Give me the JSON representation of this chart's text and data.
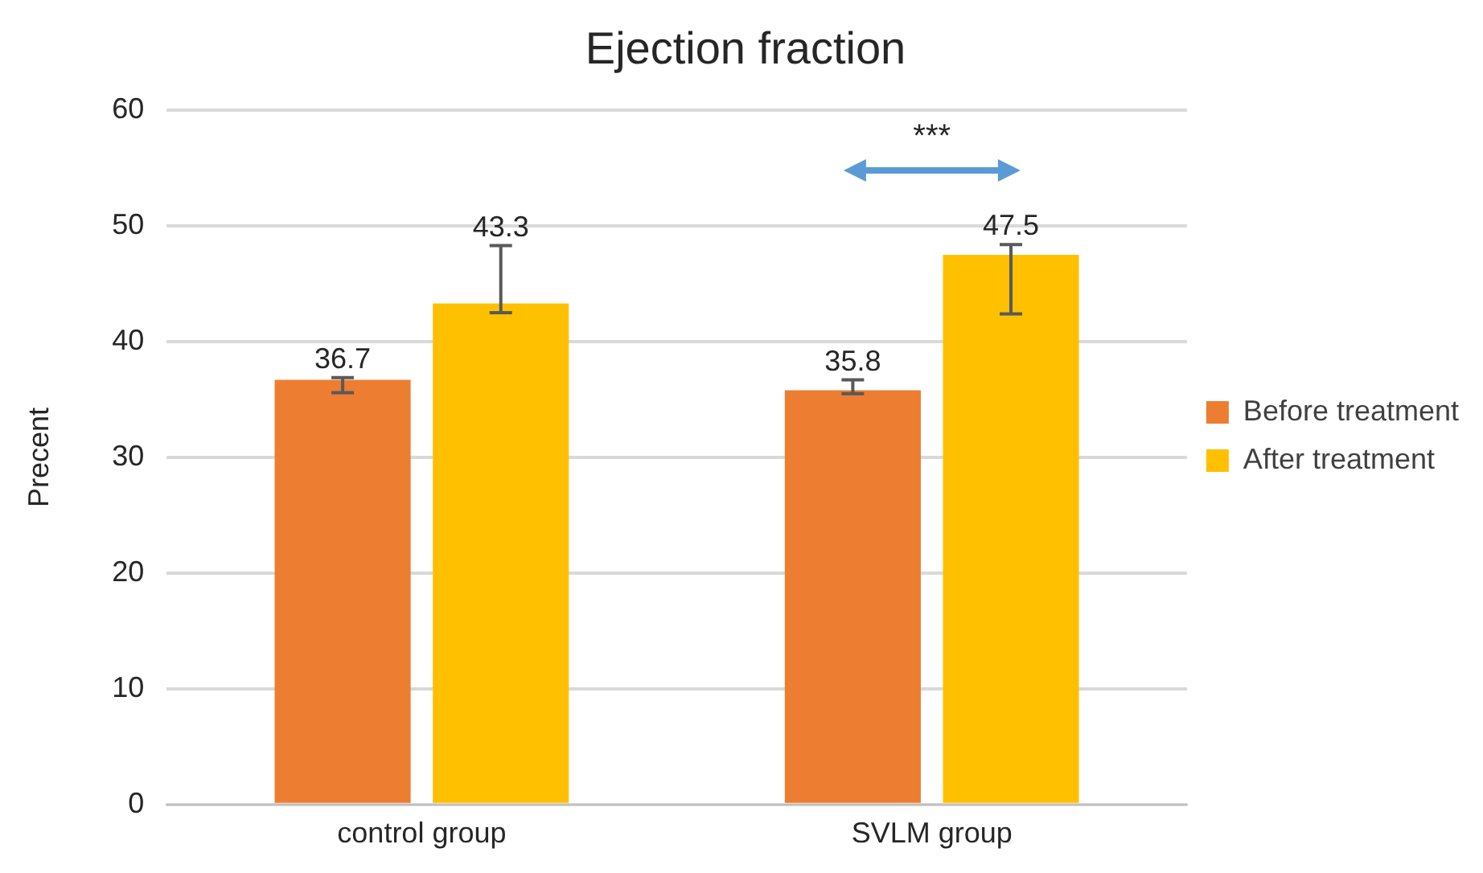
{
  "chart_data": {
    "type": "bar",
    "title": "Ejection fraction",
    "ylabel": "Precent",
    "categories": [
      "control group",
      "SVLM group"
    ],
    "series": [
      {
        "name": "Before treatment",
        "color": "#ed7d31",
        "values": [
          36.7,
          35.8
        ],
        "errors": [
          [
            35.6,
            36.9
          ],
          [
            35.5,
            36.7
          ]
        ]
      },
      {
        "name": "After treatment",
        "color": "#ffc000",
        "values": [
          43.3,
          47.5
        ],
        "errors": [
          [
            42.5,
            48.3
          ],
          [
            42.4,
            48.4
          ]
        ]
      }
    ],
    "ylim": [
      0,
      60
    ],
    "yticks": [
      0,
      10,
      20,
      30,
      40,
      50,
      60
    ],
    "grid": "y",
    "legend": "right",
    "data_labels": true,
    "annotations": [
      "***"
    ]
  }
}
